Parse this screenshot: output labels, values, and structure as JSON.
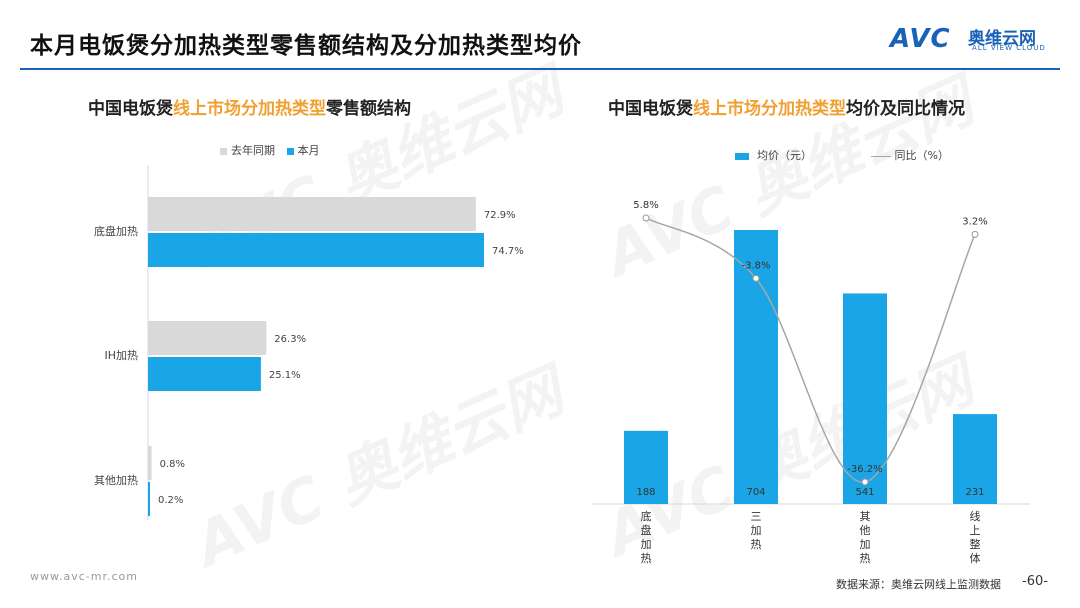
{
  "page": {
    "title": "本月电饭煲分加热类型零售额结构及分加热类型均价",
    "logo": {
      "avc": "AVC",
      "cn": "奥维云网",
      "en": "ALL VIEW CLOUD"
    },
    "footer": {
      "url": "www.avc-mr.com",
      "source": "数据来源：奥维云网线上监测数据",
      "page_number": "-60-"
    },
    "watermark": {
      "text": "AVC 奥维云网",
      "sub": "ALL VIEW CLOUD"
    },
    "colors": {
      "accent": "#1a62b7",
      "bar_current": "#1aa6e6",
      "bar_last_year": "#d9d9d9",
      "highlight": "#f0a030",
      "line": "#a6a6a6"
    }
  },
  "chart_data": [
    {
      "type": "bar",
      "orientation": "horizontal",
      "title_parts": [
        "中国电饭煲",
        "线上市场分加热类型",
        "零售额结构"
      ],
      "categories": [
        "底盘加热",
        "IH加热",
        "其他加热"
      ],
      "series": [
        {
          "name": "去年同期",
          "values": [
            72.9,
            26.3,
            0.8
          ],
          "labels": [
            "72.9%",
            "26.3%",
            "0.8%"
          ],
          "color": "#d9d9d9"
        },
        {
          "name": "本月",
          "values": [
            74.7,
            25.1,
            0.2
          ],
          "labels": [
            "74.7%",
            "25.1%",
            "0.2%"
          ],
          "color": "#1aa6e6"
        }
      ],
      "xlim": [
        0,
        100
      ],
      "legend": "top-left",
      "grid": false
    },
    {
      "type": "bar+line",
      "title_parts": [
        "中国电饭煲",
        "线上市场分加热类型",
        "均价及同比情况"
      ],
      "categories": [
        "底盘加热",
        "三加热",
        "其他加热",
        "线上整体"
      ],
      "bar_series": {
        "name": "均价（元）",
        "values": [
          188,
          704,
          541,
          231
        ],
        "labels": [
          "188",
          "704",
          "541",
          "231"
        ],
        "color": "#1aa6e6"
      },
      "line_series": {
        "name": "同比（%）",
        "values": [
          5.8,
          -3.8,
          -36.2,
          3.2
        ],
        "labels": [
          "5.8%",
          "-3.8%",
          "-36.2%",
          "3.2%"
        ],
        "color": "#a6a6a6"
      },
      "ylim_bar": [
        0,
        800
      ],
      "ylim_line": [
        -40,
        10
      ],
      "legend": "top",
      "grid": false
    }
  ]
}
